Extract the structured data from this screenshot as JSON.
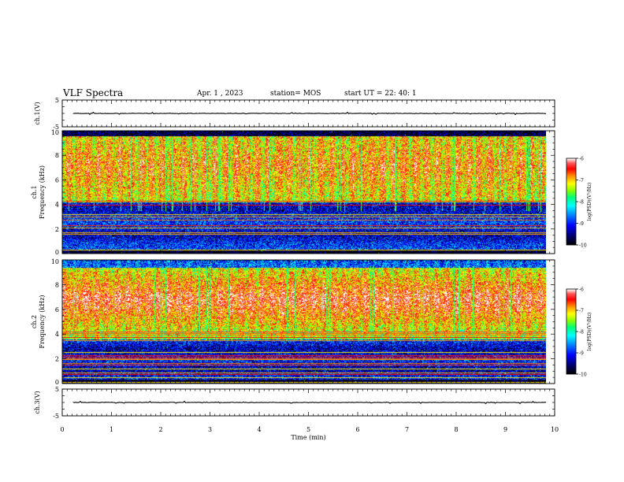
{
  "header": {
    "title": "VLF Spectra",
    "date": "Apr. 1 , 2023",
    "station": "station= MOS",
    "start": "start UT = 22: 40: 1"
  },
  "chart_data": [
    {
      "type": "line",
      "name": "ch1-voltage",
      "ylabel": "ch.1(V)",
      "ylim": [
        -5,
        5
      ],
      "yticks": [
        "5",
        "-5"
      ],
      "xlim": [
        0,
        10
      ],
      "trace_level": 0
    },
    {
      "type": "heatmap",
      "name": "ch1-spectrogram",
      "ylabel": "ch.1\nFrequency (kHz)",
      "ylim": [
        0,
        10
      ],
      "yticks": [
        "0",
        "2",
        "4",
        "6",
        "8",
        "10"
      ],
      "xlim": [
        0,
        10
      ],
      "duration_min": 9.83,
      "colorbar": {
        "label": "log(PSD)(V²/Hz)",
        "range": [
          -10,
          -6
        ],
        "ticks": [
          "-6",
          "-7",
          "-8",
          "-9",
          "-10"
        ]
      }
    },
    {
      "type": "heatmap",
      "name": "ch2-spectrogram",
      "ylabel": "ch.2\nFrequency (kHz)",
      "ylim": [
        0,
        10
      ],
      "yticks": [
        "0",
        "2",
        "4",
        "6",
        "8",
        "10"
      ],
      "xlim": [
        0,
        10
      ],
      "duration_min": 9.83,
      "colorbar": {
        "label": "log(PSD)(V²/Hz)",
        "range": [
          -10,
          -6
        ],
        "ticks": [
          "-6",
          "-7",
          "-8",
          "-9",
          "-10"
        ]
      }
    },
    {
      "type": "line",
      "name": "ch3-voltage",
      "ylabel": "ch.3(V)",
      "ylim": [
        -5,
        5
      ],
      "yticks": [
        "5",
        "-5"
      ],
      "xlim": [
        0,
        10
      ],
      "trace_level": 0
    }
  ],
  "xaxis": {
    "label": "Time (min)",
    "ticks": [
      "0",
      "1",
      "2",
      "3",
      "4",
      "5",
      "6",
      "7",
      "8",
      "9",
      "10"
    ]
  },
  "colors": {
    "colormap": [
      "#000000",
      "#0000a0",
      "#0000ff",
      "#0080ff",
      "#00ffff",
      "#00ff80",
      "#80ff00",
      "#ffff00",
      "#ff8000",
      "#ff0000",
      "#ff5050",
      "#ffffff"
    ]
  }
}
